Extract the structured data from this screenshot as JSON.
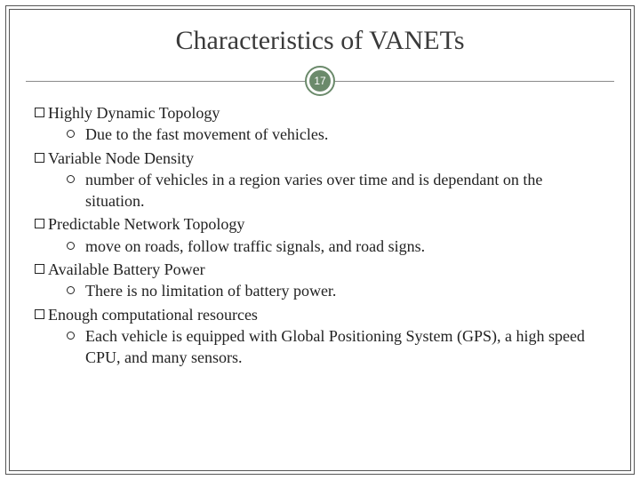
{
  "slide": {
    "title": "Characteristics of VANETs",
    "page_number": "17",
    "accent_color": "#6b8a6b",
    "title_color": "#3a3a3a",
    "text_color": "#222222",
    "items": [
      {
        "heading": "Highly Dynamic Topology",
        "sub": "Due to the fast movement of vehicles."
      },
      {
        "heading": "Variable Node Density",
        "sub": "number of vehicles in a region varies over time and is dependant on the situation."
      },
      {
        "heading": "Predictable Network Topology",
        "sub": "move on roads, follow traffic signals, and road signs."
      },
      {
        "heading": "Available Battery Power",
        "sub": "There is no limitation of battery power."
      },
      {
        "heading": "Enough computational resources",
        "sub": "Each vehicle is equipped with Global Positioning System (GPS), a high speed CPU, and many sensors."
      }
    ]
  }
}
